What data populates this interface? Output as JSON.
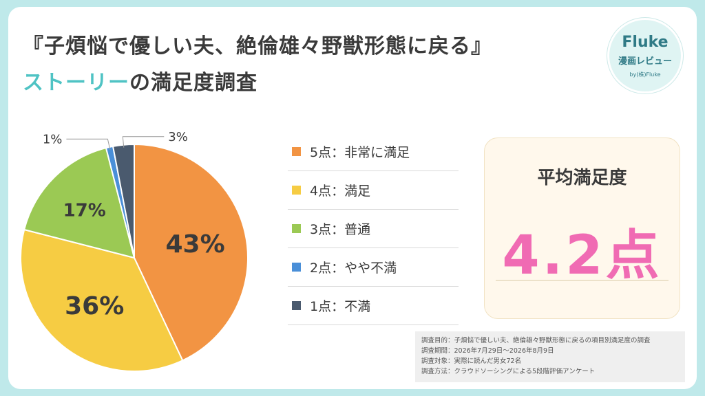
{
  "title": {
    "line1": "『子煩悩で優しい夫、絶倫雄々野獣形態に戻る』",
    "line2_accent": "ストーリー",
    "line2_rest": "の満足度調査"
  },
  "logo": {
    "brand": "Fluke",
    "subtitle": "漫画レビュー",
    "byline": "by(株)Fluke"
  },
  "chart_data": {
    "type": "pie",
    "title": "",
    "slices": [
      {
        "label": "5点：非常に満足",
        "value": 43,
        "display": "43%",
        "color": "#f29443"
      },
      {
        "label": "4点：満足",
        "value": 36,
        "display": "36%",
        "color": "#f6cc43"
      },
      {
        "label": "3点：普通",
        "value": 17,
        "display": "17%",
        "color": "#9bc954"
      },
      {
        "label": "2点：やや不満",
        "value": 1,
        "display": "1%",
        "color": "#4a8fd8"
      },
      {
        "label": "1点：不満",
        "value": 3,
        "display": "3%",
        "color": "#4a5a6e"
      }
    ],
    "legend_position": "right"
  },
  "average": {
    "label": "平均満足度",
    "value": "4.2点"
  },
  "survey_notes": [
    "調査目的：子煩悩で優しい夫、絶倫雄々野獣形態に戻るの項目別満足度の調査",
    "調査期間：2026年7月29日～2026年8月9日",
    "調査対象：実際に読んだ男女72名",
    "調査方法：クラウドソーシングによる5段階評価アンケート"
  ]
}
